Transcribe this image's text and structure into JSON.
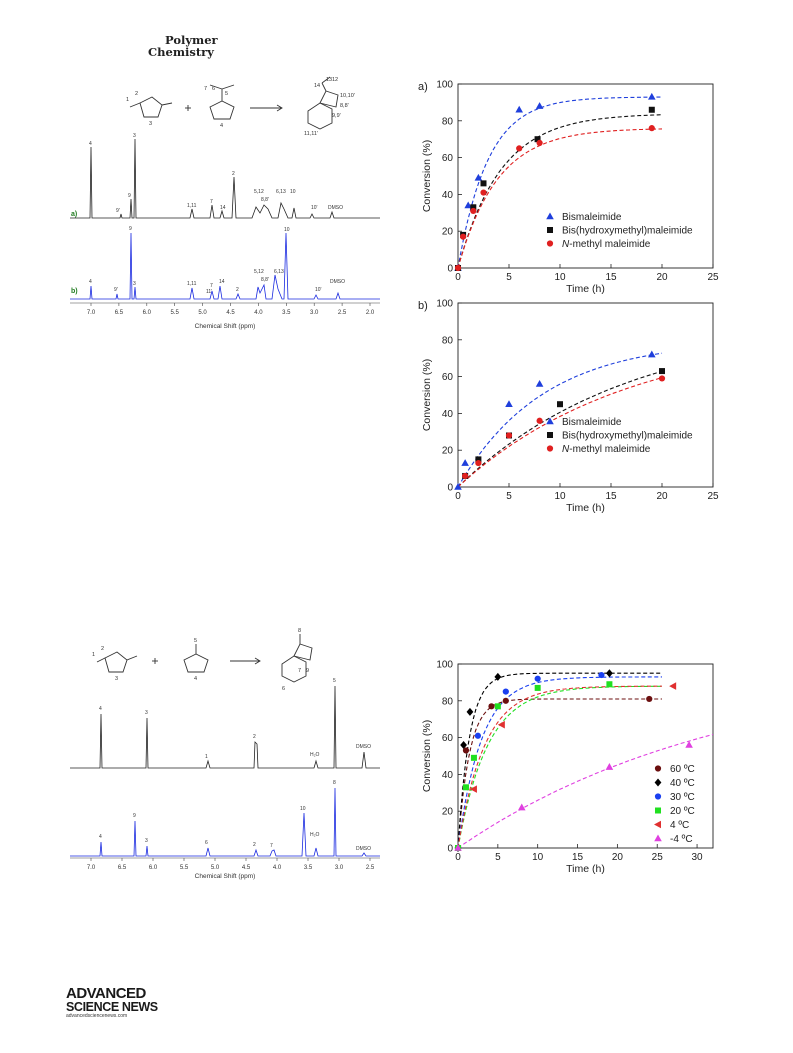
{
  "journal": {
    "line1": "Polymer",
    "line2": "Chemistry"
  },
  "footer": {
    "brand_line1": "ADVANCED",
    "brand_line2": "SCIENCE NEWS",
    "brand_url": "advancedsciencenews.com"
  },
  "nmr_top": {
    "trace_a_label": "a)",
    "trace_b_label": "b)",
    "xlabel": "Chemical Shift (ppm)",
    "ticks": [
      "7.0",
      "6.5",
      "6.0",
      "5.5",
      "5.0",
      "4.5",
      "4.0",
      "3.5",
      "3.0",
      "2.5",
      "2.0"
    ],
    "scheme_numbers": [
      "1",
      "2",
      "3",
      "4",
      "5",
      "6",
      "7",
      "14",
      "13",
      "12",
      "10,10'",
      "8,8'",
      "9,9'",
      "11,11'"
    ],
    "trace_a_peaks": [
      "4",
      "9'",
      "9",
      "3",
      "1,11",
      "7",
      "14",
      "2",
      "5,12",
      "8,8'",
      "6,13",
      "10",
      "10'",
      "DMSO"
    ],
    "trace_b_peaks": [
      "9",
      "10",
      "4",
      "9'",
      "3",
      "1,11",
      "7",
      "11'",
      "14",
      "2",
      "5,12",
      "8,8'",
      "6,13",
      "10'",
      "DMSO"
    ]
  },
  "nmr_bottom": {
    "xlabel": "Chemical Shift (ppm)",
    "ticks": [
      "7.0",
      "6.5",
      "6.0",
      "5.5",
      "5.0",
      "4.5",
      "4.0",
      "3.5",
      "3.0",
      "2.5"
    ],
    "scheme_numbers": [
      "1",
      "2",
      "3",
      "5",
      "4",
      "8",
      "7",
      "6",
      "9"
    ],
    "trace_a_peaks": [
      "4",
      "3",
      "1",
      "2",
      "5",
      "H₂O",
      "DMSO"
    ],
    "trace_b_peaks": [
      "8",
      "9",
      "10",
      "4",
      "3",
      "6",
      "2",
      "7",
      "H₂O",
      "DMSO"
    ]
  },
  "chart_data": [
    {
      "type": "scatter",
      "panel_label": "a)",
      "xlabel": "Time (h)",
      "ylabel": "Conversion (%)",
      "xlim": [
        0,
        25
      ],
      "ylim": [
        0,
        100
      ],
      "xticks": [
        "0",
        "5",
        "10",
        "15",
        "20",
        "25"
      ],
      "yticks": [
        "0",
        "20",
        "40",
        "60",
        "80",
        "100"
      ],
      "legend_position": "lower-right",
      "series": [
        {
          "name": "Bismaleimide",
          "color": "#1f3fdc",
          "marker": "triangle",
          "x": [
            0,
            1,
            2,
            6,
            8,
            19
          ],
          "y": [
            0,
            34,
            49,
            86,
            88,
            93
          ]
        },
        {
          "name": "Bis(hydroxymethyl)maleimide",
          "color": "#111111",
          "marker": "square",
          "x": [
            0,
            0.5,
            1.5,
            2.5,
            7.8,
            19
          ],
          "y": [
            0,
            18,
            33,
            46,
            70,
            86
          ]
        },
        {
          "name": "N-methyl maleimide",
          "color": "#e02020",
          "marker": "circle",
          "x": [
            0,
            0.5,
            1.5,
            2.5,
            6,
            8,
            19
          ],
          "y": [
            0,
            17,
            31,
            41,
            65,
            68,
            76
          ]
        }
      ],
      "fits": [
        {
          "color": "#1f3fdc",
          "plateau": 93,
          "k": 0.34
        },
        {
          "color": "#111111",
          "plateau": 84,
          "k": 0.24
        },
        {
          "color": "#e02020",
          "plateau": 76,
          "k": 0.26
        }
      ]
    },
    {
      "type": "scatter",
      "panel_label": "b)",
      "xlabel": "Time (h)",
      "ylabel": "Conversion (%)",
      "xlim": [
        0,
        25
      ],
      "ylim": [
        0,
        100
      ],
      "xticks": [
        "0",
        "5",
        "10",
        "15",
        "20",
        "25"
      ],
      "yticks": [
        "0",
        "20",
        "40",
        "60",
        "80",
        "100"
      ],
      "legend_position": "lower-right",
      "series": [
        {
          "name": "Bismaleimide",
          "color": "#1f3fdc",
          "marker": "triangle",
          "x": [
            0,
            0.7,
            5,
            8,
            19
          ],
          "y": [
            0,
            13,
            45,
            56,
            72
          ]
        },
        {
          "name": "Bis(hydroxymethyl)maleimide",
          "color": "#111111",
          "marker": "square",
          "x": [
            0.7,
            2,
            5,
            10,
            20
          ],
          "y": [
            6,
            15,
            28,
            45,
            63
          ]
        },
        {
          "name": "N-methyl maleimide",
          "color": "#e02020",
          "marker": "circle",
          "x": [
            0.7,
            2,
            5,
            8,
            20
          ],
          "y": [
            6,
            13,
            28,
            36,
            59
          ]
        }
      ],
      "fits": [
        {
          "color": "#1f3fdc",
          "plateau": 80,
          "k": 0.12
        },
        {
          "color": "#111111",
          "plateau": 90,
          "k": 0.06
        },
        {
          "color": "#e02020",
          "plateau": 85,
          "k": 0.06
        }
      ]
    },
    {
      "type": "scatter",
      "panel_label": "",
      "xlabel": "Time (h)",
      "ylabel": "Conversion (%)",
      "xlim": [
        0,
        32
      ],
      "ylim": [
        0,
        100
      ],
      "xticks": [
        "0",
        "5",
        "10",
        "15",
        "20",
        "25",
        "30"
      ],
      "yticks": [
        "0",
        "20",
        "40",
        "60",
        "80",
        "100"
      ],
      "legend_position": "lower-right",
      "series": [
        {
          "name": "60 ºC",
          "color": "#6b0f0f",
          "marker": "circle",
          "x": [
            0,
            1,
            4.2,
            6,
            24
          ],
          "y": [
            0,
            53,
            77,
            80,
            81
          ]
        },
        {
          "name": "40 ºC",
          "color": "#000000",
          "marker": "diamond",
          "x": [
            0,
            0.7,
            1.5,
            5,
            19
          ],
          "y": [
            0,
            56,
            74,
            93,
            95
          ]
        },
        {
          "name": "30 ºC",
          "color": "#1a3ff0",
          "marker": "circle",
          "x": [
            0,
            2.5,
            6,
            10,
            18
          ],
          "y": [
            0,
            61,
            85,
            92,
            94
          ]
        },
        {
          "name": "20 ºC",
          "color": "#20e020",
          "marker": "square",
          "x": [
            0,
            1,
            2,
            5,
            10,
            19
          ],
          "y": [
            0,
            33,
            49,
            77,
            87,
            89
          ]
        },
        {
          "name": "4 ºC",
          "color": "#e03030",
          "marker": "triangle-left",
          "x": [
            2,
            5.5,
            27
          ],
          "y": [
            32,
            67,
            88
          ]
        },
        {
          "name": "-4 ºC",
          "color": "#e040e0",
          "marker": "triangle",
          "x": [
            0,
            8,
            19,
            29
          ],
          "y": [
            0,
            22,
            44,
            56
          ]
        }
      ],
      "fits": [
        {
          "color": "#6b0f0f",
          "plateau": 81,
          "k": 0.7
        },
        {
          "color": "#000000",
          "plateau": 95,
          "k": 0.7
        },
        {
          "color": "#1a3ff0",
          "plateau": 93,
          "k": 0.34
        },
        {
          "color": "#20e020",
          "plateau": 88,
          "k": 0.27
        },
        {
          "color": "#e03030",
          "plateau": 88,
          "k": 0.3
        },
        {
          "color": "#e040e0",
          "plateau": 100,
          "k": 0.03
        }
      ]
    }
  ]
}
